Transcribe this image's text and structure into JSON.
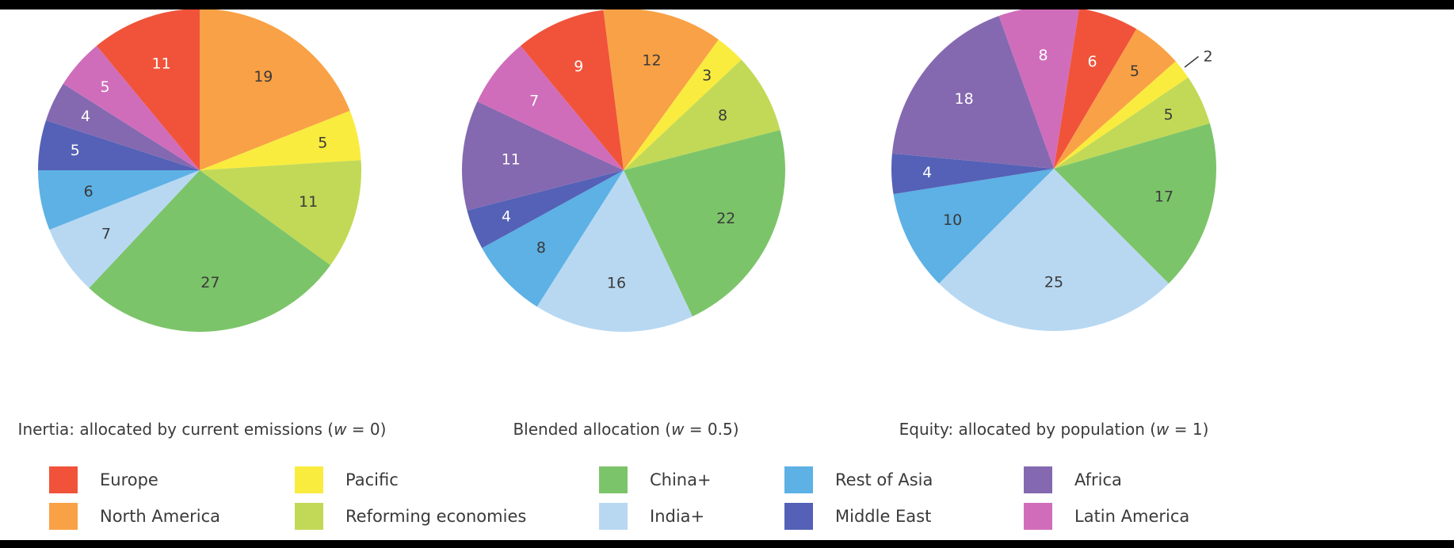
{
  "chart_data": [
    {
      "type": "pie",
      "title": "Inertia: allocated by current emissions (w = 0)",
      "categories": [
        "Europe",
        "North America",
        "Pacific",
        "Reforming economies",
        "China+",
        "India+",
        "Rest of Asia",
        "Middle East",
        "Africa",
        "Latin America"
      ],
      "values": [
        11,
        19,
        5,
        11,
        27,
        7,
        6,
        5,
        4,
        5
      ],
      "order": [
        "North America",
        "Pacific",
        "Reforming economies",
        "China+",
        "India+",
        "Rest of Asia",
        "Middle East",
        "Africa",
        "Latin America",
        "Europe"
      ]
    },
    {
      "type": "pie",
      "title": "Blended allocation (w = 0.5)",
      "categories": [
        "Europe",
        "North America",
        "Pacific",
        "Reforming economies",
        "China+",
        "India+",
        "Rest of Asia",
        "Middle East",
        "Africa",
        "Latin America"
      ],
      "values": [
        9,
        12,
        3,
        8,
        22,
        16,
        8,
        4,
        11,
        7
      ],
      "order": [
        "North America",
        "Pacific",
        "Reforming economies",
        "China+",
        "India+",
        "Rest of Asia",
        "Middle East",
        "Africa",
        "Latin America",
        "Europe"
      ]
    },
    {
      "type": "pie",
      "title": "Equity: allocated by population (w = 1)",
      "categories": [
        "Europe",
        "North America",
        "Pacific",
        "Reforming economies",
        "China+",
        "India+",
        "Rest of Asia",
        "Middle East",
        "Africa",
        "Latin America"
      ],
      "values": [
        6,
        5,
        2,
        5,
        17,
        25,
        10,
        4,
        18,
        8
      ],
      "order": [
        "Latin America",
        "Europe",
        "North America",
        "Pacific",
        "Reforming economies",
        "China+",
        "India+",
        "Rest of Asia",
        "Middle East",
        "Africa"
      ]
    }
  ],
  "captions": [
    {
      "pre": "Inertia: allocated by current emissions (",
      "w": "w",
      "post": " = 0)"
    },
    {
      "pre": "Blended allocation (",
      "w": "w",
      "post": " = 0.5)"
    },
    {
      "pre": "Equity: allocated by population (",
      "w": "w",
      "post": " = 1)"
    }
  ],
  "legend": [
    {
      "label": "Europe",
      "color": "#f0533a"
    },
    {
      "label": "North America",
      "color": "#f9a146"
    },
    {
      "label": "Pacific",
      "color": "#f9ec3e"
    },
    {
      "label": "Reforming economies",
      "color": "#c2d957"
    },
    {
      "label": "China+",
      "color": "#7cc46a"
    },
    {
      "label": "India+",
      "color": "#b8d8f2"
    },
    {
      "label": "Rest of Asia",
      "color": "#5db1e4"
    },
    {
      "label": "Middle East",
      "color": "#5461b6"
    },
    {
      "label": "Africa",
      "color": "#8469b0"
    },
    {
      "label": "Latin America",
      "color": "#d06dba"
    }
  ],
  "label_colors": {
    "light": "#ffffff",
    "dark": "#3a3a3a"
  },
  "dark_label_regions": [
    "North America",
    "Pacific",
    "Reforming economies",
    "China+",
    "India+",
    "Rest of Asia"
  ]
}
